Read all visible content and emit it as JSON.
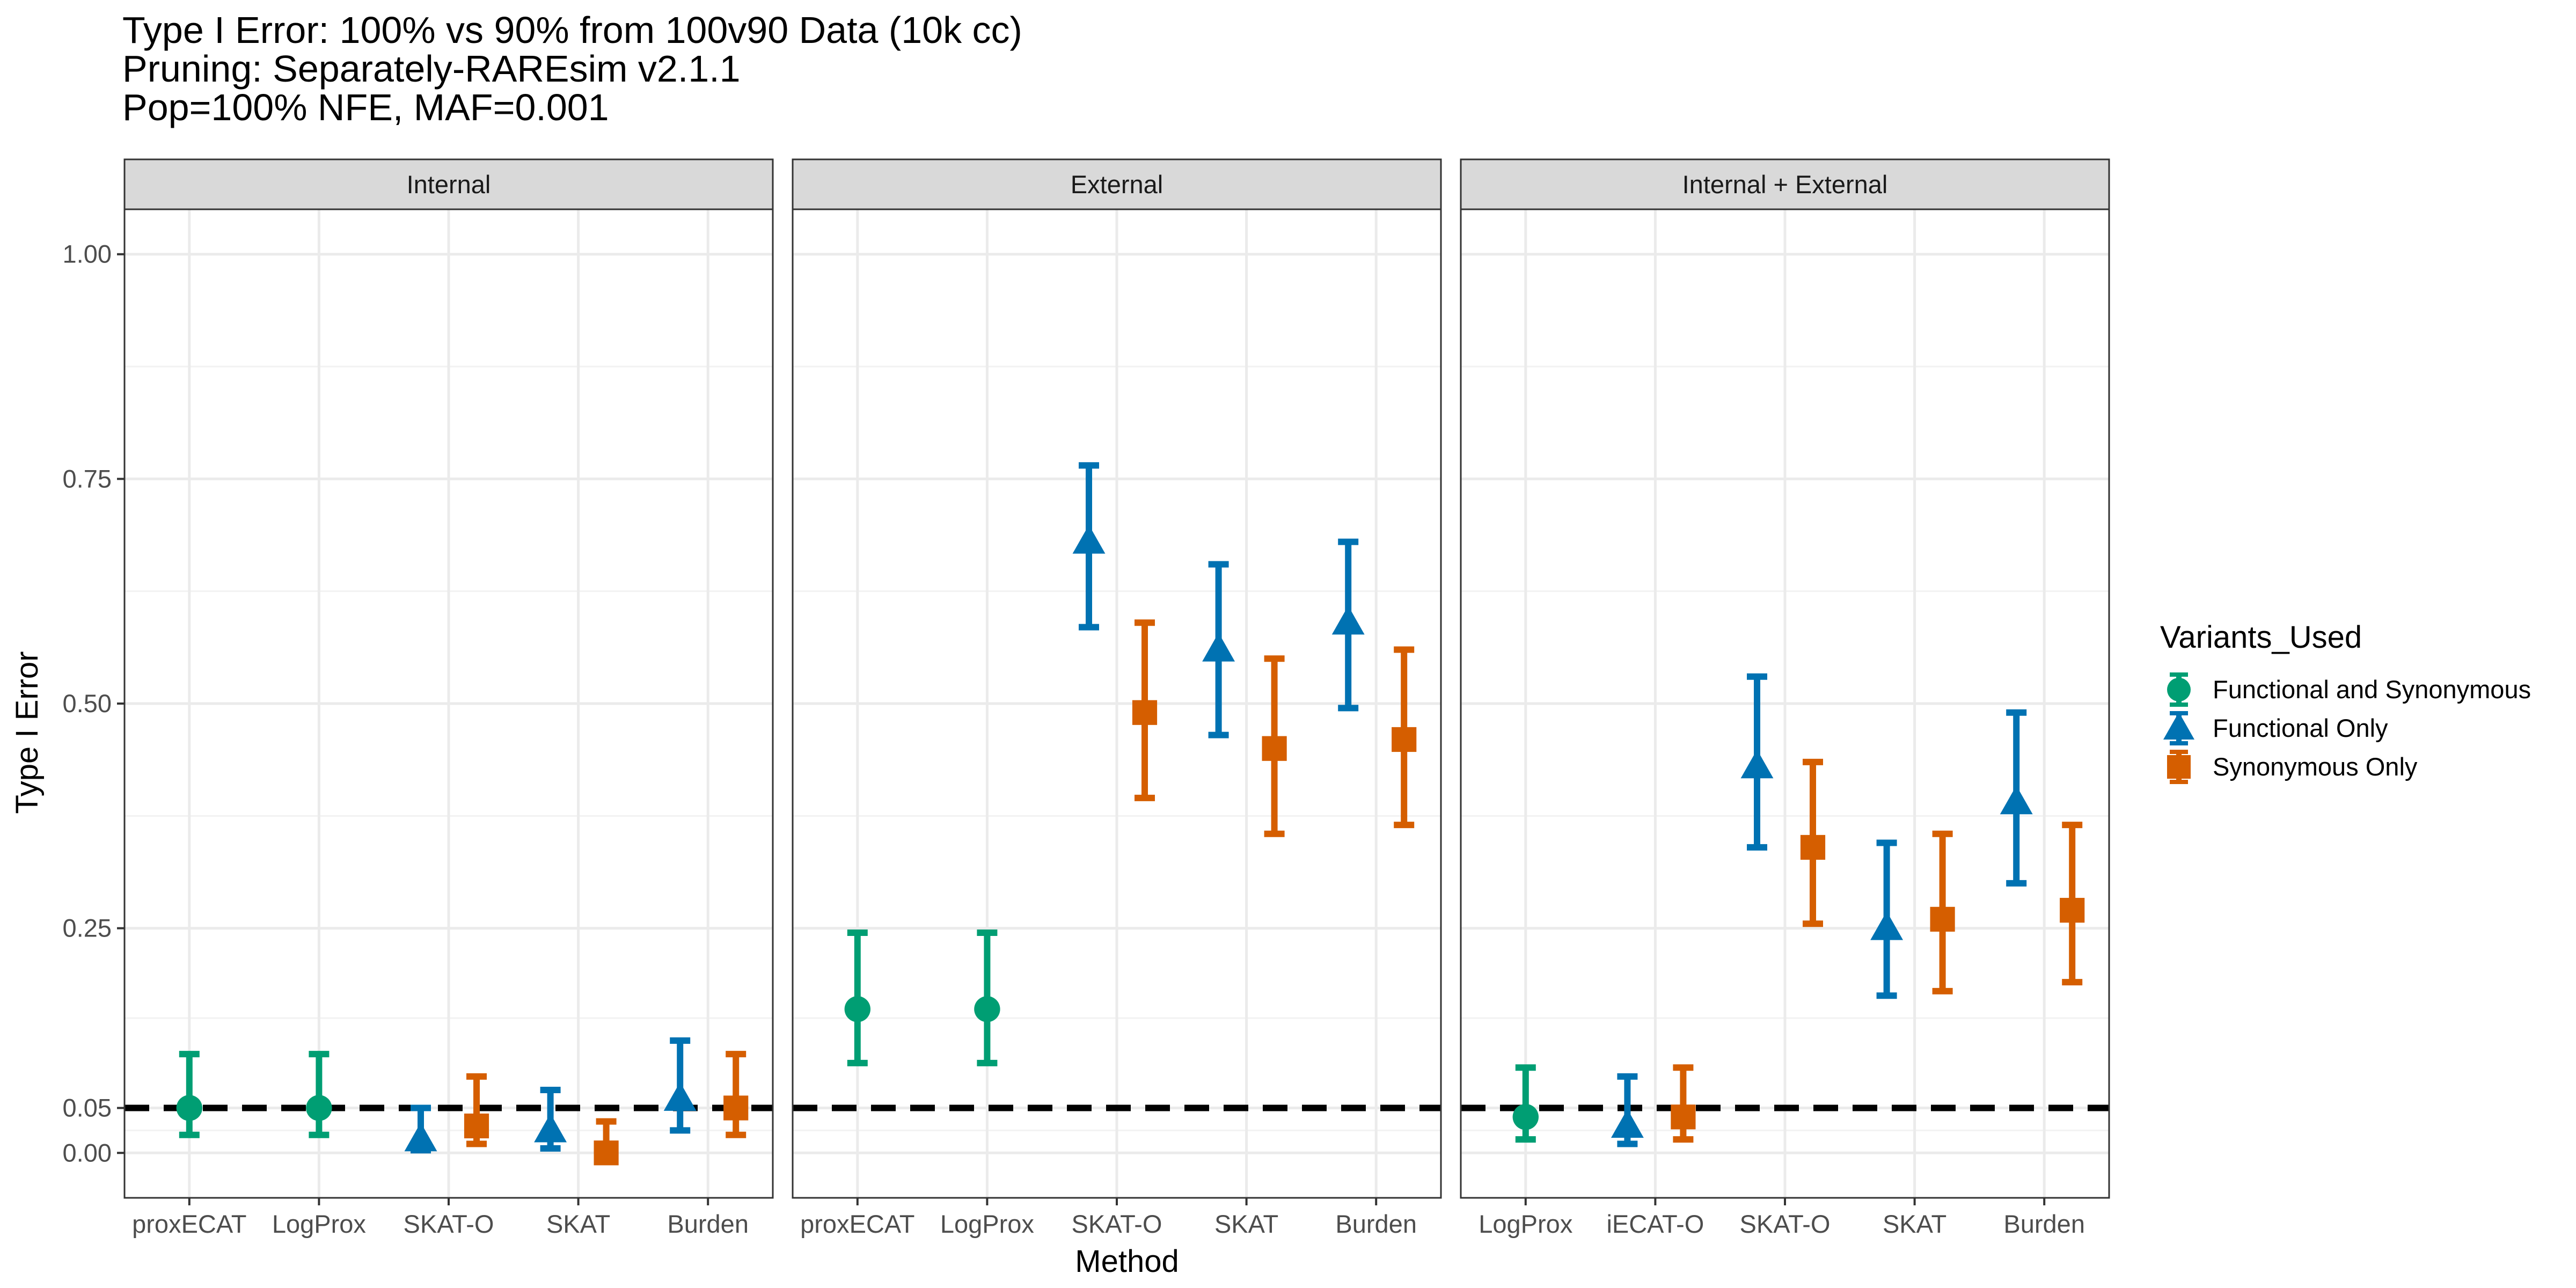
{
  "chart_data": {
    "type": "scatter",
    "title": [
      "Type I Error: 100% vs 90% from 100v90 Data (10k cc)",
      "Pruning: Separately-RAREsim v2.1.1",
      "Pop=100% NFE, MAF=0.001"
    ],
    "xlabel": "Method",
    "ylabel": "Type I Error",
    "ylim": [
      -0.05,
      1.05
    ],
    "yticks": [
      {
        "value": 0.0,
        "label": "0.00"
      },
      {
        "value": 0.05,
        "label": "0.05"
      },
      {
        "value": 0.25,
        "label": "0.25"
      },
      {
        "value": 0.5,
        "label": "0.50"
      },
      {
        "value": 0.75,
        "label": "0.75"
      },
      {
        "value": 1.0,
        "label": "1.00"
      }
    ],
    "reference_line": {
      "y": 0.05,
      "style": "dashed"
    },
    "grid": true,
    "legend": {
      "title": "Variants_Used",
      "position": "right",
      "entries": [
        {
          "name": "Functional and Synonymous",
          "color": "#009E73",
          "shape": "circle"
        },
        {
          "name": "Functional Only",
          "color": "#0072B2",
          "shape": "triangle"
        },
        {
          "name": "Synonymous Only",
          "color": "#D55E00",
          "shape": "square"
        }
      ]
    },
    "panels": [
      {
        "label": "Internal",
        "categories": [
          "proxECAT",
          "LogProx",
          "SKAT-O",
          "SKAT",
          "Burden"
        ],
        "points": [
          {
            "category": "proxECAT",
            "series": "Functional and Synonymous",
            "y": 0.05,
            "lo": 0.02,
            "hi": 0.11
          },
          {
            "category": "LogProx",
            "series": "Functional and Synonymous",
            "y": 0.05,
            "lo": 0.02,
            "hi": 0.11
          },
          {
            "category": "SKAT-O",
            "series": "Functional Only",
            "y": 0.015,
            "lo": 0.003,
            "hi": 0.05
          },
          {
            "category": "SKAT-O",
            "series": "Synonymous Only",
            "y": 0.03,
            "lo": 0.01,
            "hi": 0.085
          },
          {
            "category": "SKAT",
            "series": "Functional Only",
            "y": 0.025,
            "lo": 0.005,
            "hi": 0.07
          },
          {
            "category": "SKAT",
            "series": "Synonymous Only",
            "y": 0.0,
            "lo": 0.0,
            "hi": 0.035
          },
          {
            "category": "Burden",
            "series": "Functional Only",
            "y": 0.06,
            "lo": 0.025,
            "hi": 0.125
          },
          {
            "category": "Burden",
            "series": "Synonymous Only",
            "y": 0.05,
            "lo": 0.02,
            "hi": 0.11
          }
        ]
      },
      {
        "label": "External",
        "categories": [
          "proxECAT",
          "LogProx",
          "SKAT-O",
          "SKAT",
          "Burden"
        ],
        "points": [
          {
            "category": "proxECAT",
            "series": "Functional and Synonymous",
            "y": 0.16,
            "lo": 0.1,
            "hi": 0.245
          },
          {
            "category": "LogProx",
            "series": "Functional and Synonymous",
            "y": 0.16,
            "lo": 0.1,
            "hi": 0.245
          },
          {
            "category": "SKAT-O",
            "series": "Functional Only",
            "y": 0.68,
            "lo": 0.585,
            "hi": 0.765
          },
          {
            "category": "SKAT-O",
            "series": "Synonymous Only",
            "y": 0.49,
            "lo": 0.395,
            "hi": 0.59
          },
          {
            "category": "SKAT",
            "series": "Functional Only",
            "y": 0.56,
            "lo": 0.465,
            "hi": 0.655
          },
          {
            "category": "SKAT",
            "series": "Synonymous Only",
            "y": 0.45,
            "lo": 0.355,
            "hi": 0.55
          },
          {
            "category": "Burden",
            "series": "Functional Only",
            "y": 0.59,
            "lo": 0.495,
            "hi": 0.68
          },
          {
            "category": "Burden",
            "series": "Synonymous Only",
            "y": 0.46,
            "lo": 0.365,
            "hi": 0.56
          }
        ]
      },
      {
        "label": "Internal + External",
        "categories": [
          "LogProx",
          "iECAT-O",
          "SKAT-O",
          "SKAT",
          "Burden"
        ],
        "points": [
          {
            "category": "LogProx",
            "series": "Functional and Synonymous",
            "y": 0.04,
            "lo": 0.015,
            "hi": 0.095
          },
          {
            "category": "iECAT-O",
            "series": "Functional Only",
            "y": 0.03,
            "lo": 0.01,
            "hi": 0.085
          },
          {
            "category": "iECAT-O",
            "series": "Synonymous Only",
            "y": 0.04,
            "lo": 0.015,
            "hi": 0.095
          },
          {
            "category": "SKAT-O",
            "series": "Functional Only",
            "y": 0.43,
            "lo": 0.34,
            "hi": 0.53
          },
          {
            "category": "SKAT-O",
            "series": "Synonymous Only",
            "y": 0.34,
            "lo": 0.255,
            "hi": 0.435
          },
          {
            "category": "SKAT",
            "series": "Functional Only",
            "y": 0.25,
            "lo": 0.175,
            "hi": 0.345
          },
          {
            "category": "SKAT",
            "series": "Synonymous Only",
            "y": 0.26,
            "lo": 0.18,
            "hi": 0.355
          },
          {
            "category": "Burden",
            "series": "Functional Only",
            "y": 0.39,
            "lo": 0.3,
            "hi": 0.49
          },
          {
            "category": "Burden",
            "series": "Synonymous Only",
            "y": 0.27,
            "lo": 0.19,
            "hi": 0.365
          }
        ]
      }
    ]
  }
}
